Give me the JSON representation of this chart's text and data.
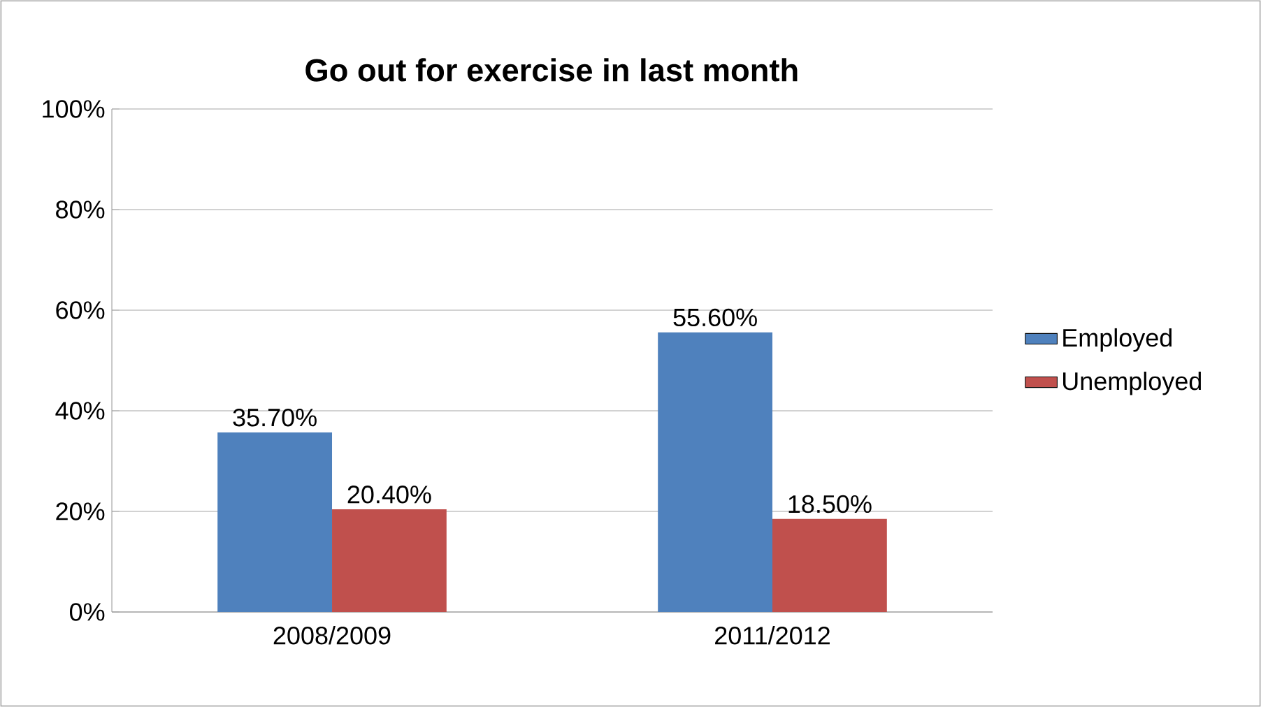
{
  "chart_data": {
    "type": "bar",
    "title": "Go out for exercise in last month",
    "categories": [
      "2008/2009",
      "2011/2012"
    ],
    "series": [
      {
        "name": "Employed",
        "color": "#4f81bd",
        "values": [
          35.7,
          55.6
        ],
        "value_labels": [
          "35.70%",
          "55.60%"
        ]
      },
      {
        "name": "Unemployed",
        "color": "#c0504d",
        "values": [
          20.4,
          18.5
        ],
        "value_labels": [
          "20.40%",
          "18.50%"
        ]
      }
    ],
    "ylim": [
      0,
      100
    ],
    "yticks": [
      {
        "value": 0,
        "label": "0%"
      },
      {
        "value": 20,
        "label": "20%"
      },
      {
        "value": 40,
        "label": "40%"
      },
      {
        "value": 60,
        "label": "60%"
      },
      {
        "value": 80,
        "label": "80%"
      },
      {
        "value": 100,
        "label": "100%"
      }
    ],
    "grid": "y",
    "legend": "right"
  }
}
